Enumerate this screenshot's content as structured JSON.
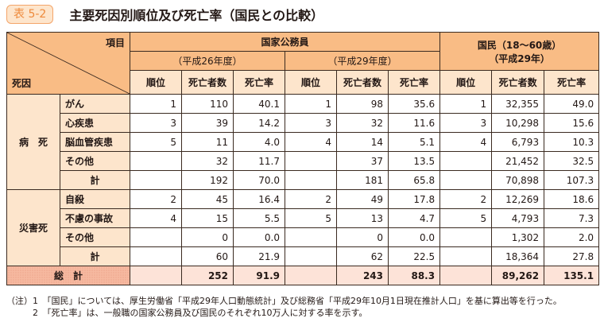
{
  "header": {
    "badge": "表 5-2",
    "title": "主要死因別順位及び死亡率（国民との比較）"
  },
  "table": {
    "corner_top": "項目",
    "corner_bottom": "死因",
    "group_public": "国家公務員",
    "period_h26": "（平成26年度）",
    "period_h29": "（平成29年度）",
    "group_nation_line1": "国民（18〜60歳）",
    "group_nation_line2": "（平成29年）",
    "col_rank": "順位",
    "col_deaths": "死亡者数",
    "col_rate": "死亡率",
    "cat_disease": "病　死",
    "cat_disaster": "災害死",
    "grand_total": "総　計",
    "rows": [
      {
        "label": "がん",
        "v": [
          "1",
          "110",
          "40.1",
          "1",
          "98",
          "35.6",
          "1",
          "32,355",
          "49.0"
        ]
      },
      {
        "label": "心疾患",
        "v": [
          "3",
          "39",
          "14.2",
          "3",
          "32",
          "11.6",
          "3",
          "10,298",
          "15.6"
        ]
      },
      {
        "label": "脳血管疾患",
        "v": [
          "5",
          "11",
          "4.0",
          "4",
          "14",
          "5.1",
          "4",
          "6,793",
          "10.3"
        ]
      },
      {
        "label": "その他",
        "v": [
          "",
          "32",
          "11.7",
          "",
          "37",
          "13.5",
          "",
          "21,452",
          "32.5"
        ]
      },
      {
        "label": "計",
        "v": [
          "",
          "192",
          "70.0",
          "",
          "181",
          "65.8",
          "",
          "70,898",
          "107.3"
        ]
      },
      {
        "label": "自殺",
        "v": [
          "2",
          "45",
          "16.4",
          "2",
          "49",
          "17.8",
          "2",
          "12,269",
          "18.6"
        ]
      },
      {
        "label": "不慮の事故",
        "v": [
          "4",
          "15",
          "5.5",
          "5",
          "13",
          "4.7",
          "5",
          "4,793",
          "7.3"
        ]
      },
      {
        "label": "その他",
        "v": [
          "",
          "0",
          "0.0",
          "",
          "0",
          "0.0",
          "",
          "1,302",
          "2.0"
        ]
      },
      {
        "label": "計",
        "v": [
          "",
          "60",
          "21.9",
          "",
          "62",
          "22.5",
          "",
          "18,364",
          "27.8"
        ]
      }
    ],
    "total": [
      "",
      "252",
      "91.9",
      "",
      "243",
      "88.3",
      "",
      "89,262",
      "135.1"
    ]
  },
  "notes": [
    "（注）1　「国民」については、厚生労働省「平成29年人口動態統計」及び総務省「平成29年10月1日現在推計人口」を基に算出等を行った。",
    "　　　2　「死亡率」は、一般職の国家公務員及び国民のそれぞれ10万人に対する率を示す。"
  ]
}
